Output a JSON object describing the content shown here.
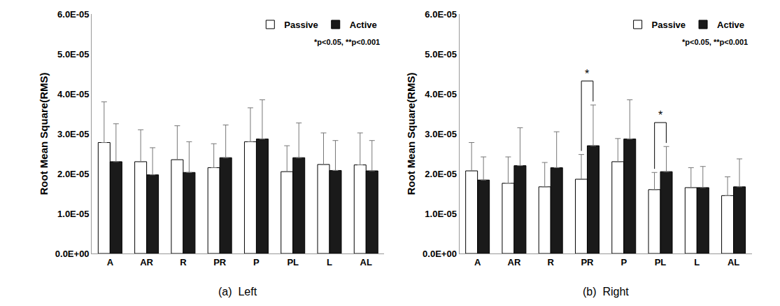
{
  "chart_data": [
    {
      "type": "bar",
      "title": "(a)  Left",
      "y_label": "Root Mean Square(RMS)",
      "categories": [
        "A",
        "AR",
        "R",
        "PR",
        "P",
        "PL",
        "L",
        "AL"
      ],
      "series": [
        {
          "name": "Passive",
          "color": "#ffffff",
          "values": [
            2.78e-05,
            2.3e-05,
            2.35e-05,
            2.15e-05,
            2.8e-05,
            2.05e-05,
            2.23e-05,
            2.22e-05
          ],
          "errors": [
            1.02e-05,
            8e-06,
            8.5e-06,
            6e-06,
            8.5e-06,
            6.5e-06,
            7.9e-06,
            8e-06
          ]
        },
        {
          "name": "Active",
          "color": "#1a1a1a",
          "values": [
            2.3e-05,
            1.97e-05,
            2.03e-05,
            2.4e-05,
            2.87e-05,
            2.4e-05,
            2.08e-05,
            2.07e-05
          ],
          "errors": [
            9.5e-06,
            6.8e-06,
            7.7e-06,
            8.2e-06,
            9.8e-06,
            8.7e-06,
            7.5e-06,
            7.6e-06
          ]
        }
      ],
      "ylim": [
        0,
        6e-05
      ],
      "yticks": [
        {
          "value": 0,
          "label": "0.0E+00"
        },
        {
          "value": 1e-05,
          "label": "1.0E-05"
        },
        {
          "value": 2e-05,
          "label": "2.0E-05"
        },
        {
          "value": 3e-05,
          "label": "3.0E-05"
        },
        {
          "value": 4e-05,
          "label": "4.0E-05"
        },
        {
          "value": 5e-05,
          "label": "5.0E-05"
        },
        {
          "value": 6e-05,
          "label": "6.0E-05"
        }
      ],
      "grid": false,
      "legend": "top right",
      "note": "*p<0.05, **p<0.001",
      "annotations": []
    },
    {
      "type": "bar",
      "title": "(b)  Right",
      "y_label": "Root Mean Square(RMS)",
      "categories": [
        "A",
        "AR",
        "R",
        "PR",
        "P",
        "PL",
        "L",
        "AL"
      ],
      "series": [
        {
          "name": "Passive",
          "color": "#ffffff",
          "values": [
            2.07e-05,
            1.76e-05,
            1.67e-05,
            1.86e-05,
            2.3e-05,
            1.6e-05,
            1.65e-05,
            1.45e-05
          ],
          "errors": [
            7.1e-06,
            6.6e-06,
            6.1e-06,
            6.2e-06,
            5.8e-06,
            4.3e-06,
            5e-06,
            4.7e-06
          ]
        },
        {
          "name": "Active",
          "color": "#1a1a1a",
          "values": [
            1.84e-05,
            2.2e-05,
            2.15e-05,
            2.7e-05,
            2.87e-05,
            2.05e-05,
            1.65e-05,
            1.67e-05
          ],
          "errors": [
            5.8e-06,
            9.5e-06,
            9e-06,
            1.02e-05,
            9.8e-06,
            6.3e-06,
            5.3e-06,
            7e-06
          ]
        }
      ],
      "ylim": [
        0,
        6e-05
      ],
      "yticks": [
        {
          "value": 0,
          "label": "0.0E+00"
        },
        {
          "value": 1e-05,
          "label": "1.0E-05"
        },
        {
          "value": 2e-05,
          "label": "2.0E-05"
        },
        {
          "value": 3e-05,
          "label": "3.0E-05"
        },
        {
          "value": 4e-05,
          "label": "4.0E-05"
        },
        {
          "value": 5e-05,
          "label": "5.0E-05"
        },
        {
          "value": 6e-05,
          "label": "6.0E-05"
        }
      ],
      "grid": false,
      "legend": "top right",
      "note": "*p<0.05, **p<0.001",
      "annotations": [
        {
          "category": "PR",
          "text": "*"
        },
        {
          "category": "PL",
          "text": "*"
        }
      ]
    }
  ]
}
